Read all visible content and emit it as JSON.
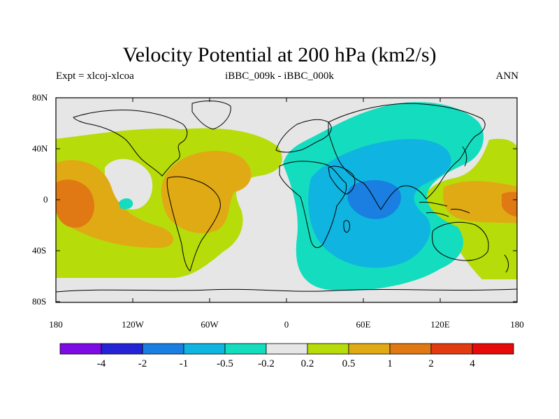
{
  "title": "Velocity Potential at 200 hPa (km2/s)",
  "left_label": "Expt = xlcoj-xlcoa",
  "center_label": "iBBC_009k - iBBC_000k",
  "right_label": "ANN",
  "y_ticks": [
    "80N",
    "40N",
    "0",
    "40S",
    "80S"
  ],
  "x_ticks": [
    "180",
    "120W",
    "60W",
    "0",
    "60E",
    "120E",
    "180"
  ],
  "colorbar": {
    "colors": [
      "#7d0be6",
      "#2424d6",
      "#1a7fe0",
      "#0fb4e0",
      "#14dcbf",
      "#e6e6e6",
      "#b6dc0a",
      "#e0aa14",
      "#e07914",
      "#e03c0f",
      "#e60a0a"
    ],
    "labels": [
      "-4",
      "-2",
      "-1",
      "-0.5",
      "-0.2",
      "0.2",
      "0.5",
      "1",
      "2",
      "4"
    ]
  },
  "colors": {
    "background": "#e6e6e6",
    "pos1": "#b6dc0a",
    "pos2": "#e0aa14",
    "pos3": "#e07914",
    "neg1": "#14dcbf",
    "neg2": "#0fb4e0",
    "neg3": "#1a7fe0"
  }
}
